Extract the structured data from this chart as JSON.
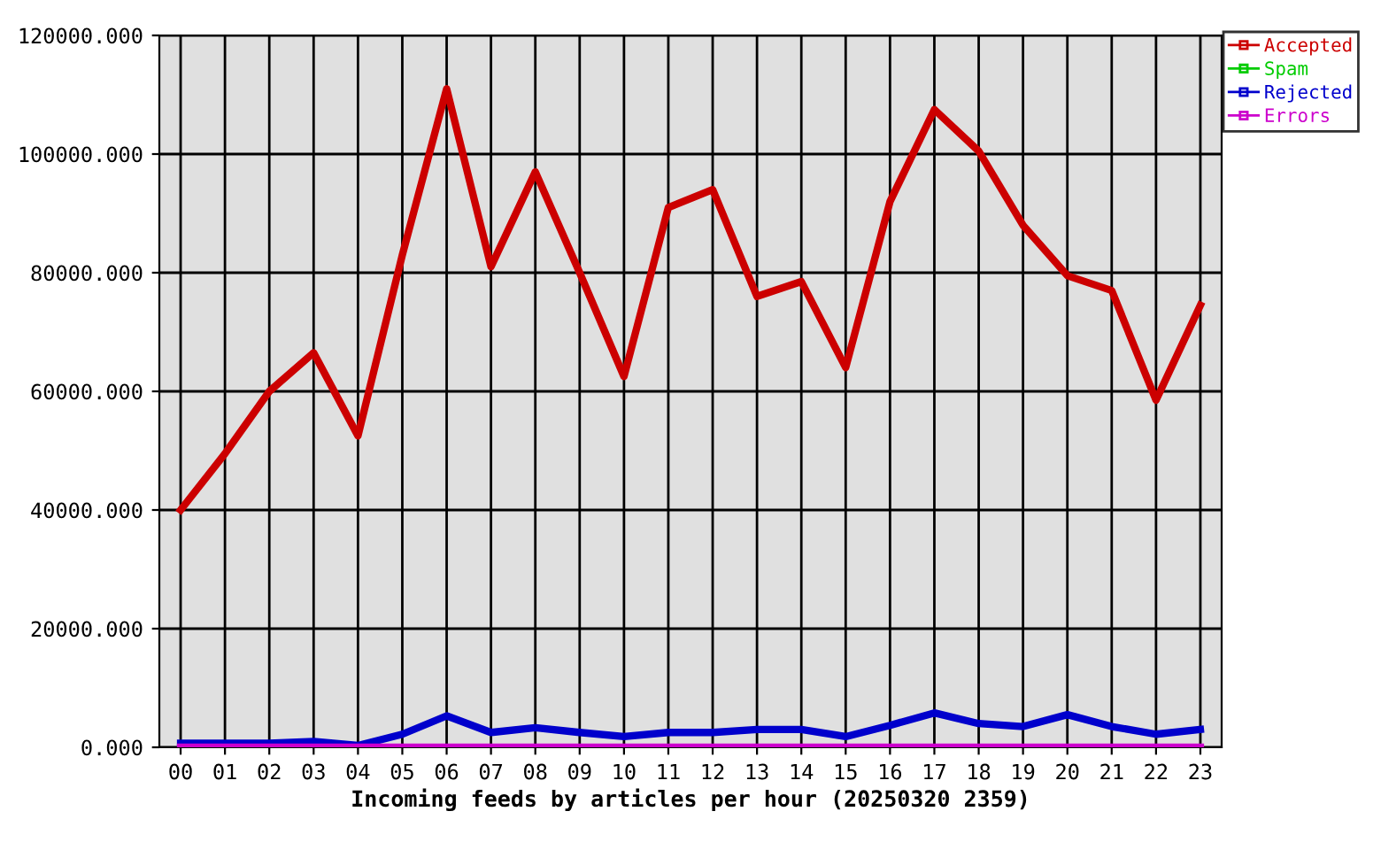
{
  "chart_data": {
    "type": "line",
    "xlabel": "Incoming feeds by articles per hour (20250320 2359)",
    "categories": [
      "00",
      "01",
      "02",
      "03",
      "04",
      "05",
      "06",
      "07",
      "08",
      "09",
      "10",
      "11",
      "12",
      "13",
      "14",
      "15",
      "16",
      "17",
      "18",
      "19",
      "20",
      "21",
      "22",
      "23"
    ],
    "series": [
      {
        "name": "Accepted",
        "color": "#cc0000",
        "values": [
          40000,
          49500,
          60000,
          66500,
          52500,
          83000,
          111000,
          81000,
          97000,
          80000,
          62500,
          91000,
          94000,
          76000,
          78500,
          64000,
          92000,
          107500,
          100500,
          88000,
          79500,
          77000,
          58500,
          74500
        ]
      },
      {
        "name": "Spam",
        "color": "#00cc00",
        "values": [
          null,
          null,
          null,
          null,
          null,
          null,
          null,
          null,
          null,
          null,
          null,
          null,
          null,
          null,
          null,
          null,
          null,
          null,
          null,
          null,
          null,
          null,
          null,
          null
        ]
      },
      {
        "name": "Rejected",
        "color": "#0000cc",
        "values": [
          700,
          700,
          700,
          1000,
          300,
          2200,
          5300,
          2500,
          3300,
          2500,
          1800,
          2500,
          2500,
          3000,
          3000,
          1800,
          3700,
          5800,
          4000,
          3500,
          5500,
          3500,
          2200,
          3000
        ]
      },
      {
        "name": "Errors",
        "color": "#cc00cc",
        "values": [
          0,
          0,
          0,
          0,
          0,
          0,
          0,
          0,
          0,
          0,
          0,
          0,
          0,
          0,
          0,
          0,
          0,
          0,
          0,
          0,
          0,
          0,
          0,
          0
        ]
      }
    ],
    "ylim": [
      0,
      120000
    ],
    "yticks": [
      {
        "value": 0,
        "label": "0.000"
      },
      {
        "value": 20000,
        "label": "20000.000"
      },
      {
        "value": 40000,
        "label": "40000.000"
      },
      {
        "value": 60000,
        "label": "60000.000"
      },
      {
        "value": 80000,
        "label": "80000.000"
      },
      {
        "value": 100000,
        "label": "100000.000"
      },
      {
        "value": 120000,
        "label": "120000.000"
      }
    ],
    "grid": true,
    "legend": "top right",
    "line_style": "solid"
  }
}
